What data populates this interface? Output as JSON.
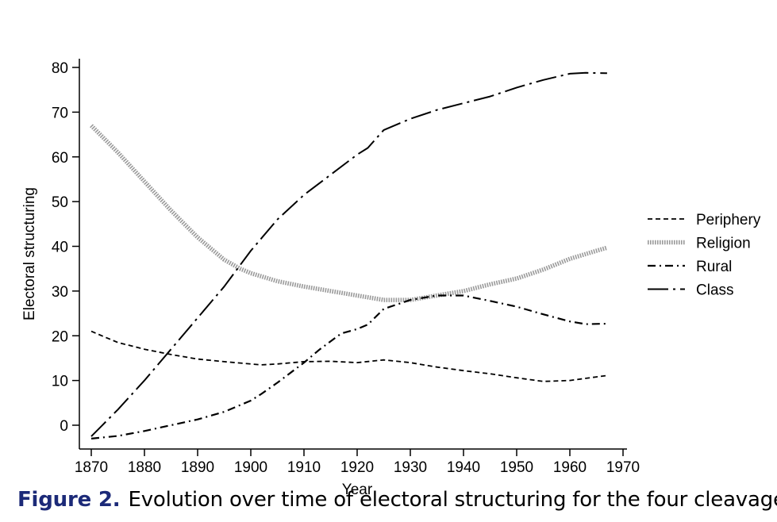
{
  "chart_data": {
    "type": "line",
    "title": "",
    "xlabel": "Year",
    "ylabel": "Electoral structuring",
    "xlim": [
      1870,
      1970
    ],
    "ylim": [
      -5,
      82
    ],
    "xticks": [
      "1870",
      "1880",
      "1890",
      "1900",
      "1910",
      "1920",
      "1930",
      "1940",
      "1950",
      "1960",
      "1970"
    ],
    "yticks": [
      "0",
      "10",
      "20",
      "30",
      "40",
      "50",
      "60",
      "70",
      "80"
    ],
    "grid": false,
    "legend_position": "right",
    "series": [
      {
        "name": "Periphery",
        "style": "dashed",
        "color": "#000000",
        "points": [
          [
            1870,
            21
          ],
          [
            1872,
            20
          ],
          [
            1875,
            18.5
          ],
          [
            1880,
            17
          ],
          [
            1885,
            15.8
          ],
          [
            1890,
            14.8
          ],
          [
            1895,
            14.2
          ],
          [
            1900,
            13.7
          ],
          [
            1902,
            13.5
          ],
          [
            1905,
            13.7
          ],
          [
            1910,
            14.2
          ],
          [
            1915,
            14.3
          ],
          [
            1920,
            14
          ],
          [
            1925,
            14.6
          ],
          [
            1930,
            14
          ],
          [
            1935,
            13
          ],
          [
            1940,
            12.2
          ],
          [
            1945,
            11.5
          ],
          [
            1950,
            10.6
          ],
          [
            1955,
            9.8
          ],
          [
            1960,
            10
          ],
          [
            1965,
            10.8
          ],
          [
            1967,
            11.1
          ]
        ]
      },
      {
        "name": "Religion",
        "style": "dotted-thick",
        "color": "#9a9a9a",
        "points": [
          [
            1870,
            67
          ],
          [
            1875,
            61
          ],
          [
            1880,
            54.5
          ],
          [
            1885,
            48
          ],
          [
            1890,
            42
          ],
          [
            1895,
            37
          ],
          [
            1898,
            35
          ],
          [
            1900,
            34
          ],
          [
            1905,
            32.2
          ],
          [
            1910,
            31
          ],
          [
            1915,
            30
          ],
          [
            1920,
            29
          ],
          [
            1925,
            28
          ],
          [
            1930,
            28
          ],
          [
            1935,
            29
          ],
          [
            1940,
            30
          ],
          [
            1945,
            31.5
          ],
          [
            1950,
            32.8
          ],
          [
            1955,
            34.8
          ],
          [
            1960,
            37.2
          ],
          [
            1965,
            39
          ],
          [
            1967,
            39.7
          ]
        ]
      },
      {
        "name": "Rural",
        "style": "dash-dot",
        "color": "#000000",
        "points": [
          [
            1870,
            -3
          ],
          [
            1875,
            -2.4
          ],
          [
            1880,
            -1.3
          ],
          [
            1885,
            0
          ],
          [
            1890,
            1.3
          ],
          [
            1895,
            3
          ],
          [
            1900,
            5.5
          ],
          [
            1902,
            7
          ],
          [
            1905,
            9.5
          ],
          [
            1910,
            14
          ],
          [
            1913,
            17
          ],
          [
            1917,
            20.5
          ],
          [
            1920,
            21.5
          ],
          [
            1922,
            22.5
          ],
          [
            1925,
            26
          ],
          [
            1930,
            28
          ],
          [
            1935,
            29
          ],
          [
            1940,
            29
          ],
          [
            1945,
            27.8
          ],
          [
            1950,
            26.5
          ],
          [
            1955,
            24.8
          ],
          [
            1960,
            23.2
          ],
          [
            1963,
            22.6
          ],
          [
            1967,
            22.7
          ]
        ]
      },
      {
        "name": "Class",
        "style": "long-dash-dot",
        "color": "#000000",
        "points": [
          [
            1870,
            -2.5
          ],
          [
            1875,
            3.5
          ],
          [
            1880,
            10
          ],
          [
            1885,
            17
          ],
          [
            1890,
            24
          ],
          [
            1895,
            31
          ],
          [
            1900,
            39
          ],
          [
            1905,
            46
          ],
          [
            1910,
            51.5
          ],
          [
            1915,
            56
          ],
          [
            1920,
            60.5
          ],
          [
            1922,
            62
          ],
          [
            1925,
            66
          ],
          [
            1930,
            68.5
          ],
          [
            1935,
            70.5
          ],
          [
            1940,
            72
          ],
          [
            1945,
            73.5
          ],
          [
            1950,
            75.5
          ],
          [
            1955,
            77.2
          ],
          [
            1960,
            78.6
          ],
          [
            1963,
            78.8
          ],
          [
            1967,
            78.7
          ]
        ]
      }
    ]
  },
  "caption": {
    "label": "Figure 2.",
    "text": "Evolution over time of electoral structuring for the four cleavages."
  }
}
